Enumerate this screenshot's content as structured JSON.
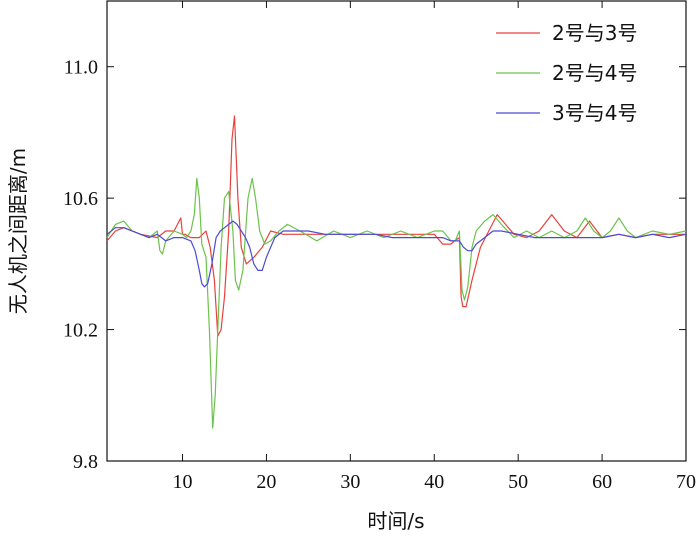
{
  "chart_data": {
    "type": "line",
    "xlabel": "时间/s",
    "ylabel": "无人机之间距离/m",
    "xlim": [
      1,
      70
    ],
    "ylim": [
      9.8,
      11.2
    ],
    "xticks": [
      10,
      20,
      30,
      40,
      50,
      60,
      70
    ],
    "yticks": [
      9.8,
      10.2,
      10.6,
      11.0
    ],
    "ytick_labels": [
      "9.8",
      "10.2",
      "10.6",
      "11.0"
    ],
    "grid": false,
    "legend_position": "top-right",
    "series": [
      {
        "name": "2号与3号",
        "color": "#e8413c",
        "x": [
          1,
          2,
          3,
          5,
          7,
          8,
          9,
          9.8,
          10,
          10.3,
          11,
          12,
          12.8,
          13.3,
          13.8,
          14.2,
          14.6,
          15,
          15.5,
          15.9,
          16.2,
          16.6,
          17,
          17.6,
          18.5,
          19.5,
          20.5,
          22,
          25,
          30,
          35,
          40,
          41,
          42,
          42.4,
          43,
          43.2,
          43.4,
          43.8,
          44.5,
          45.5,
          46.5,
          47.5,
          48.5,
          49.5,
          51,
          52.5,
          54,
          55.5,
          57,
          58.5,
          60,
          62,
          64,
          66,
          68,
          70
        ],
        "y": [
          10.47,
          10.5,
          10.51,
          10.49,
          10.48,
          10.5,
          10.5,
          10.54,
          10.49,
          10.49,
          10.48,
          10.48,
          10.5,
          10.45,
          10.35,
          10.18,
          10.2,
          10.3,
          10.5,
          10.78,
          10.85,
          10.6,
          10.45,
          10.4,
          10.42,
          10.45,
          10.5,
          10.49,
          10.49,
          10.49,
          10.49,
          10.49,
          10.46,
          10.46,
          10.47,
          10.48,
          10.3,
          10.27,
          10.27,
          10.35,
          10.45,
          10.5,
          10.55,
          10.52,
          10.49,
          10.48,
          10.5,
          10.55,
          10.5,
          10.48,
          10.53,
          10.48,
          10.49,
          10.48,
          10.49,
          10.49,
          10.49
        ]
      },
      {
        "name": "2号与4号",
        "color": "#6cc24a",
        "x": [
          1,
          2,
          3,
          4,
          5,
          6,
          7,
          7.3,
          7.6,
          8,
          9,
          10,
          10.5,
          11,
          11.4,
          11.7,
          12,
          12.3,
          12.8,
          13.2,
          13.6,
          13.9,
          14.2,
          14.6,
          15,
          15.5,
          16,
          16.3,
          16.7,
          17.2,
          17.8,
          18.3,
          18.7,
          19.2,
          19.8,
          20.5,
          21.5,
          22.5,
          24,
          26,
          28,
          30,
          32,
          34,
          36,
          38,
          40,
          41,
          42,
          42.5,
          43,
          43.3,
          43.6,
          44,
          44.5,
          45,
          46,
          47,
          48,
          49.5,
          51,
          52.5,
          54,
          55.5,
          57,
          58,
          59,
          60,
          61,
          62,
          63,
          64,
          66,
          68,
          70
        ],
        "y": [
          10.48,
          10.52,
          10.53,
          10.5,
          10.49,
          10.48,
          10.5,
          10.44,
          10.43,
          10.47,
          10.5,
          10.49,
          10.48,
          10.5,
          10.55,
          10.66,
          10.6,
          10.46,
          10.42,
          10.2,
          9.9,
          10.0,
          10.2,
          10.45,
          10.6,
          10.62,
          10.5,
          10.35,
          10.32,
          10.38,
          10.6,
          10.66,
          10.6,
          10.5,
          10.46,
          10.47,
          10.5,
          10.52,
          10.5,
          10.47,
          10.5,
          10.48,
          10.5,
          10.48,
          10.5,
          10.48,
          10.5,
          10.5,
          10.47,
          10.47,
          10.5,
          10.32,
          10.29,
          10.33,
          10.45,
          10.5,
          10.53,
          10.55,
          10.52,
          10.48,
          10.5,
          10.48,
          10.5,
          10.48,
          10.5,
          10.54,
          10.5,
          10.48,
          10.5,
          10.54,
          10.5,
          10.48,
          10.5,
          10.49,
          10.5
        ]
      },
      {
        "name": "3号与4号",
        "color": "#4b4bd6",
        "x": [
          1,
          2,
          3,
          4,
          5,
          6,
          7,
          8,
          9,
          10,
          11,
          11.5,
          12,
          12.3,
          12.6,
          13,
          13.5,
          14,
          14.5,
          15,
          15.5,
          16,
          16.5,
          17,
          17.5,
          18,
          18.5,
          19,
          19.5,
          20,
          20.5,
          21,
          22,
          23,
          25,
          27,
          29,
          31,
          33,
          35,
          37,
          39,
          40,
          41,
          42,
          43,
          43.5,
          44,
          44.5,
          45,
          46,
          47,
          48,
          50,
          52,
          54,
          56,
          58,
          60,
          62,
          64,
          66,
          68,
          70
        ],
        "y": [
          10.49,
          10.51,
          10.51,
          10.5,
          10.49,
          10.48,
          10.49,
          10.47,
          10.48,
          10.48,
          10.47,
          10.44,
          10.38,
          10.34,
          10.33,
          10.34,
          10.4,
          10.48,
          10.5,
          10.51,
          10.52,
          10.53,
          10.52,
          10.5,
          10.48,
          10.45,
          10.4,
          10.38,
          10.38,
          10.42,
          10.45,
          10.48,
          10.5,
          10.5,
          10.5,
          10.49,
          10.49,
          10.49,
          10.49,
          10.48,
          10.48,
          10.48,
          10.48,
          10.48,
          10.47,
          10.47,
          10.45,
          10.44,
          10.44,
          10.46,
          10.48,
          10.5,
          10.5,
          10.49,
          10.48,
          10.48,
          10.48,
          10.48,
          10.48,
          10.49,
          10.48,
          10.49,
          10.48,
          10.49
        ]
      }
    ]
  }
}
